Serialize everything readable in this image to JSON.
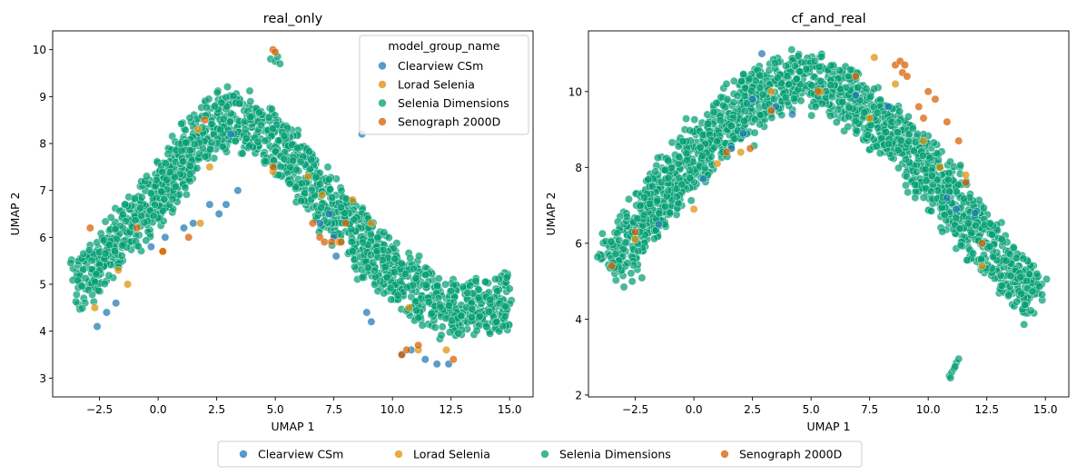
{
  "figure": {
    "colors": {
      "Clearview CSm": "#1f77b4",
      "Lorad Selenia": "#de8f05",
      "Selenia Dimensions": "#029e73",
      "Senograph 2000D": "#d55e00"
    },
    "bottom_legend": [
      "Clearview CSm",
      "Lorad Selenia",
      "Selenia Dimensions",
      "Senograph 2000D"
    ]
  },
  "chart_data": [
    {
      "type": "scatter",
      "title": "real_only",
      "xlabel": "UMAP 1",
      "ylabel": "UMAP 2",
      "xlim": [
        -4.5,
        16
      ],
      "ylim": [
        2.6,
        10.4
      ],
      "xticks": [
        "−2.5",
        "0.0",
        "2.5",
        "5.0",
        "7.5",
        "10.0",
        "12.5",
        "15.0"
      ],
      "yticks": [
        "3",
        "4",
        "5",
        "6",
        "7",
        "8",
        "9",
        "10"
      ],
      "legend": {
        "title": "model_group_name",
        "placement": "top-right",
        "entries": [
          "Clearview CSm",
          "Lorad Selenia",
          "Selenia Dimensions",
          "Senograph 2000D"
        ]
      },
      "shape": {
        "spine": [
          [
            -3.5,
            4.9
          ],
          [
            0,
            6.9
          ],
          [
            2.5,
            8.6
          ],
          [
            5,
            8.1
          ],
          [
            7.5,
            6.6
          ],
          [
            10,
            5.2
          ],
          [
            12,
            4.5
          ],
          [
            15,
            4.6
          ]
        ],
        "spread": 1.2,
        "count": 1600
      },
      "series": [
        {
          "name": "Clearview CSm",
          "points": [
            [
              -2.6,
              4.1
            ],
            [
              -2.2,
              4.4
            ],
            [
              -1.8,
              4.6
            ],
            [
              -0.3,
              5.8
            ],
            [
              0.3,
              6.0
            ],
            [
              1.1,
              6.2
            ],
            [
              1.5,
              6.3
            ],
            [
              2.2,
              6.7
            ],
            [
              2.6,
              6.5
            ],
            [
              2.9,
              6.7
            ],
            [
              3.1,
              8.2
            ],
            [
              3.4,
              7.0
            ],
            [
              6.9,
              6.3
            ],
            [
              7.3,
              6.5
            ],
            [
              7.5,
              6.0
            ],
            [
              7.6,
              5.6
            ],
            [
              8.7,
              8.2
            ],
            [
              8.9,
              4.4
            ],
            [
              9.1,
              4.2
            ],
            [
              10.4,
              3.5
            ],
            [
              10.8,
              3.6
            ],
            [
              11.4,
              3.4
            ],
            [
              11.9,
              3.3
            ],
            [
              12.4,
              3.3
            ]
          ]
        },
        {
          "name": "Lorad Selenia",
          "points": [
            [
              -2.7,
              4.5
            ],
            [
              -1.7,
              5.3
            ],
            [
              -1.3,
              5.0
            ],
            [
              0.2,
              5.7
            ],
            [
              1.7,
              8.3
            ],
            [
              1.8,
              6.3
            ],
            [
              2.2,
              7.5
            ],
            [
              4.9,
              7.4
            ],
            [
              6.4,
              7.3
            ],
            [
              7.0,
              6.9
            ],
            [
              7.7,
              5.9
            ],
            [
              8.3,
              6.8
            ],
            [
              9.1,
              6.3
            ],
            [
              10.7,
              4.5
            ],
            [
              11.1,
              3.6
            ],
            [
              12.3,
              3.6
            ]
          ]
        },
        {
          "name": "Selenia Dimensions",
          "points": []
        },
        {
          "name": "Senograph 2000D",
          "points": [
            [
              4.9,
              10.0
            ],
            [
              5.0,
              9.95
            ],
            [
              -2.9,
              6.2
            ],
            [
              -0.9,
              6.2
            ],
            [
              0.2,
              5.7
            ],
            [
              1.3,
              6.0
            ],
            [
              2.0,
              8.5
            ],
            [
              4.9,
              7.5
            ],
            [
              6.6,
              6.3
            ],
            [
              6.9,
              6.0
            ],
            [
              7.1,
              5.9
            ],
            [
              7.4,
              5.9
            ],
            [
              7.8,
              5.9
            ],
            [
              8.0,
              6.3
            ],
            [
              10.4,
              3.5
            ],
            [
              10.6,
              3.6
            ],
            [
              11.1,
              3.7
            ],
            [
              12.6,
              3.4
            ]
          ]
        }
      ],
      "extra_clusters": [
        {
          "name": "Selenia Dimensions",
          "points": [
            [
              4.8,
              9.8
            ],
            [
              5.0,
              9.75
            ],
            [
              5.2,
              9.7
            ],
            [
              5.1,
              9.85
            ]
          ]
        }
      ]
    },
    {
      "type": "scatter",
      "title": "cf_and_real",
      "xlabel": "UMAP 1",
      "ylabel": "UMAP 2",
      "xlim": [
        -4.5,
        16
      ],
      "ylim": [
        1.95,
        11.6
      ],
      "xticks": [
        "−2.5",
        "0.0",
        "2.5",
        "5.0",
        "7.5",
        "10.0",
        "12.5",
        "15.0"
      ],
      "yticks": [
        "2",
        "4",
        "6",
        "8",
        "10"
      ],
      "shape": {
        "spine": [
          [
            -3.6,
            5.3
          ],
          [
            -1,
            7.6
          ],
          [
            1.5,
            9.3
          ],
          [
            4,
            10.4
          ],
          [
            6,
            10.1
          ],
          [
            8.5,
            8.9
          ],
          [
            11,
            7.1
          ],
          [
            13,
            5.6
          ],
          [
            14.5,
            4.5
          ]
        ],
        "spread": 1.45,
        "count": 1800
      },
      "series": [
        {
          "name": "Clearview CSm",
          "points": [
            [
              -1.5,
              6.5
            ],
            [
              0.4,
              7.7
            ],
            [
              1.6,
              8.5
            ],
            [
              2.1,
              8.9
            ],
            [
              2.5,
              9.8
            ],
            [
              2.9,
              11.0
            ],
            [
              3.5,
              9.6
            ],
            [
              4.2,
              9.4
            ],
            [
              6.9,
              9.9
            ],
            [
              8.3,
              9.6
            ],
            [
              10.8,
              7.2
            ],
            [
              11.2,
              6.9
            ],
            [
              12.0,
              6.8
            ]
          ]
        },
        {
          "name": "Lorad Selenia",
          "points": [
            [
              -2.5,
              6.1
            ],
            [
              0.0,
              6.9
            ],
            [
              1.0,
              8.1
            ],
            [
              2.0,
              8.4
            ],
            [
              3.3,
              10.0
            ],
            [
              5.4,
              10.0
            ],
            [
              7.5,
              9.3
            ],
            [
              7.7,
              10.9
            ],
            [
              8.6,
              10.2
            ],
            [
              9.8,
              8.7
            ],
            [
              10.5,
              8.0
            ],
            [
              11.6,
              7.8
            ],
            [
              12.3,
              5.4
            ]
          ]
        },
        {
          "name": "Selenia Dimensions",
          "points": []
        },
        {
          "name": "Senograph 2000D",
          "points": [
            [
              -3.5,
              5.4
            ],
            [
              -2.5,
              6.3
            ],
            [
              1.4,
              8.4
            ],
            [
              2.4,
              8.5
            ],
            [
              3.3,
              9.5
            ],
            [
              5.3,
              10.0
            ],
            [
              6.9,
              10.4
            ],
            [
              8.6,
              10.7
            ],
            [
              8.8,
              10.8
            ],
            [
              8.9,
              10.5
            ],
            [
              9.0,
              10.7
            ],
            [
              9.1,
              10.4
            ],
            [
              9.6,
              9.6
            ],
            [
              9.8,
              9.3
            ],
            [
              10.0,
              10.0
            ],
            [
              10.3,
              9.8
            ],
            [
              10.8,
              9.2
            ],
            [
              11.3,
              8.7
            ],
            [
              11.6,
              7.6
            ],
            [
              12.3,
              6.0
            ]
          ]
        }
      ],
      "extra_clusters": [
        {
          "name": "Selenia Dimensions",
          "points": [
            [
              10.9,
              2.5
            ],
            [
              11.0,
              2.6
            ],
            [
              11.1,
              2.7
            ],
            [
              11.2,
              2.85
            ],
            [
              11.3,
              2.95
            ],
            [
              10.95,
              2.45
            ],
            [
              11.15,
              2.75
            ]
          ]
        }
      ]
    }
  ]
}
